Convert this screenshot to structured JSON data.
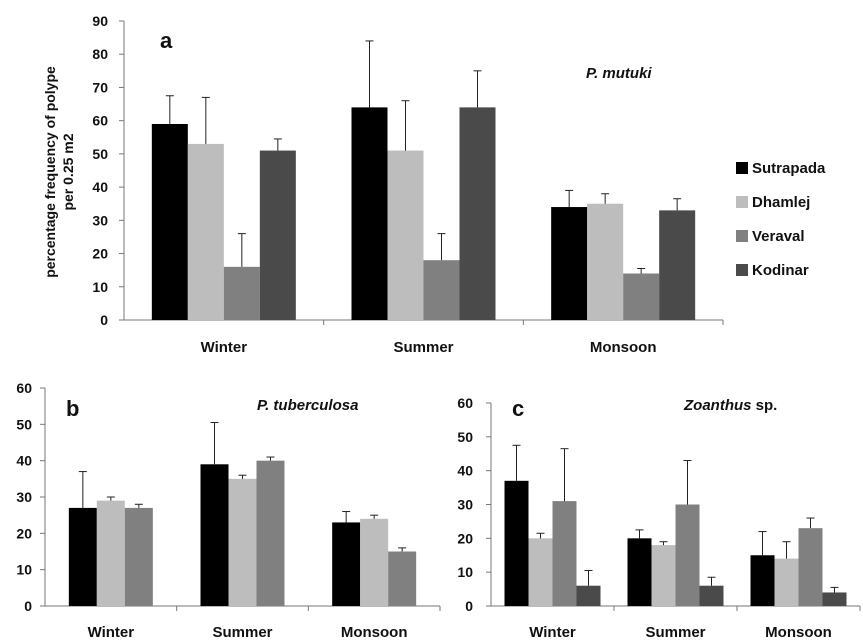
{
  "chart_data": [
    {
      "type": "bar",
      "panel": "a",
      "species": "P. mutuki",
      "ylabel_lines": [
        "percentage frequency of polype",
        "per 0.25 m2"
      ],
      "categories": [
        "Winter",
        "Summer",
        "Monsoon"
      ],
      "ylim": [
        0,
        90
      ],
      "yticks": [
        0,
        10,
        20,
        30,
        40,
        50,
        60,
        70,
        80,
        90
      ],
      "legend_position": "right",
      "series": [
        {
          "name": "Sutrapada",
          "color": "#000000",
          "values": [
            59,
            64,
            34
          ],
          "errors": [
            8.5,
            20,
            5
          ]
        },
        {
          "name": "Dhamlej",
          "color": "#bdbdbd",
          "values": [
            53,
            51,
            35
          ],
          "errors": [
            14,
            15,
            3
          ]
        },
        {
          "name": "Veraval",
          "color": "#808080",
          "values": [
            16,
            18,
            14
          ],
          "errors": [
            10,
            8,
            1.5
          ]
        },
        {
          "name": "Kodinar",
          "color": "#4a4a4a",
          "values": [
            51,
            64,
            33
          ],
          "errors": [
            3.5,
            11,
            3.5
          ]
        }
      ]
    },
    {
      "type": "bar",
      "panel": "b",
      "species": "P. tuberculosa",
      "categories": [
        "Winter",
        "Summer",
        "Monsoon"
      ],
      "ylim": [
        0,
        60
      ],
      "yticks": [
        0,
        10,
        20,
        30,
        40,
        50,
        60
      ],
      "series": [
        {
          "color": "#000000",
          "values": [
            27,
            39,
            23
          ],
          "errors": [
            10,
            11.5,
            3
          ]
        },
        {
          "color": "#bdbdbd",
          "values": [
            29,
            35,
            24
          ],
          "errors": [
            1,
            1,
            1
          ]
        },
        {
          "color": "#808080",
          "values": [
            27,
            40,
            15
          ],
          "errors": [
            1,
            1,
            1
          ]
        }
      ]
    },
    {
      "type": "bar",
      "panel": "c",
      "species_italic": "Zoanthus",
      "species_rest": " sp.",
      "categories": [
        "Winter",
        "Summer",
        "Monsoon"
      ],
      "ylim": [
        0,
        60
      ],
      "yticks": [
        0,
        10,
        20,
        30,
        40,
        50,
        60
      ],
      "series": [
        {
          "color": "#000000",
          "values": [
            37,
            20,
            15
          ],
          "errors": [
            10.5,
            2.5,
            7
          ]
        },
        {
          "color": "#bdbdbd",
          "values": [
            20,
            18,
            14
          ],
          "errors": [
            1.5,
            1,
            5
          ]
        },
        {
          "color": "#808080",
          "values": [
            31,
            30,
            23
          ],
          "errors": [
            15.5,
            13,
            3
          ]
        },
        {
          "color": "#4a4a4a",
          "values": [
            6,
            6,
            4
          ],
          "errors": [
            4.5,
            2.5,
            1.5
          ]
        }
      ]
    }
  ]
}
